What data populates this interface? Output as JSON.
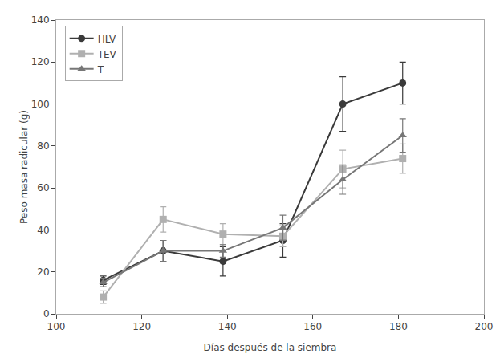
{
  "chart_data": {
    "type": "line",
    "xlabel": "Días después de la siembra",
    "ylabel": "Peso masa radicular (g)",
    "xlim": [
      100,
      200
    ],
    "ylim": [
      0,
      140
    ],
    "xticks": [
      100,
      120,
      140,
      160,
      180,
      200
    ],
    "yticks": [
      0,
      20,
      40,
      60,
      80,
      100,
      120,
      140
    ],
    "grid": false,
    "legend": "upper left",
    "x": [
      111,
      125,
      139,
      153,
      167,
      181
    ],
    "series": [
      {
        "name": "HLV",
        "color": "#3a3a3a",
        "marker": "circle",
        "line_style": "solid",
        "values": [
          16,
          30,
          25,
          35,
          100,
          110
        ],
        "yerr": [
          2,
          5,
          7,
          8,
          13,
          10
        ]
      },
      {
        "name": "TEV",
        "color": "#b0b0b0",
        "marker": "square",
        "line_style": "solid",
        "values": [
          8,
          45,
          38,
          37,
          69,
          74
        ],
        "yerr": [
          3,
          6,
          5,
          5,
          9,
          7
        ]
      },
      {
        "name": "T",
        "color": "#777777",
        "marker": "triangle-up",
        "line_style": "solid",
        "values": [
          15,
          30,
          30,
          41,
          64,
          85
        ],
        "yerr": [
          2,
          5,
          3,
          6,
          7,
          8
        ]
      }
    ]
  }
}
